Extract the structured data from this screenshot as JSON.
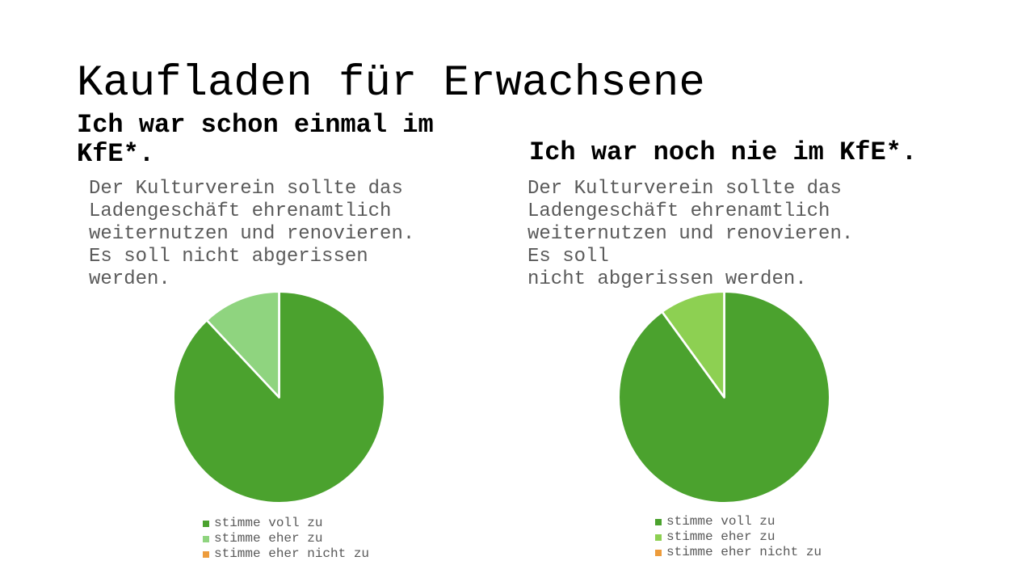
{
  "slide": {
    "title": "Kaufladen für Erwachsene",
    "background": "#ffffff"
  },
  "sections": [
    {
      "heading": "Ich war schon einmal im\nKfE*.",
      "body": "Der Kulturverein sollte das\nLadengeschäft ehrenamtlich\nweiternutzen und renovieren.\nEs soll nicht abgerissen\nwerden."
    },
    {
      "heading": "Ich war noch nie im KfE*.",
      "body": "Der Kulturverein sollte das\nLadengeschäft ehrenamtlich\nweiternutzen und renovieren.\nEs soll\nnicht abgerissen werden."
    }
  ],
  "chart_data": [
    {
      "type": "pie",
      "title": "Ich war schon einmal im KfE*.",
      "labels": [
        "stimme voll zu",
        "stimme eher zu",
        "stimme eher nicht zu"
      ],
      "values": [
        88,
        12,
        0
      ],
      "unit": "percent",
      "colors": [
        "#4BA22E",
        "#8FD47F",
        "#ED9C3C"
      ],
      "start_angle": "12-o'clock",
      "direction": "clockwise",
      "legend_position": "bottom",
      "slice_border_color": "#ffffff"
    },
    {
      "type": "pie",
      "title": "Ich war noch nie im KfE*.",
      "labels": [
        "stimme voll zu",
        "stimme eher zu",
        "stimme eher nicht zu"
      ],
      "values": [
        90,
        10,
        0
      ],
      "unit": "percent",
      "colors": [
        "#4BA22E",
        "#8DD052",
        "#ED9C3C"
      ],
      "start_angle": "12-o'clock",
      "direction": "clockwise",
      "legend_position": "bottom",
      "slice_border_color": "#ffffff"
    }
  ],
  "colors": {
    "title_text": "#000000",
    "heading_text": "#000000",
    "body_text": "#5a5a5a",
    "legend_text": "#595959",
    "background": "#ffffff"
  }
}
